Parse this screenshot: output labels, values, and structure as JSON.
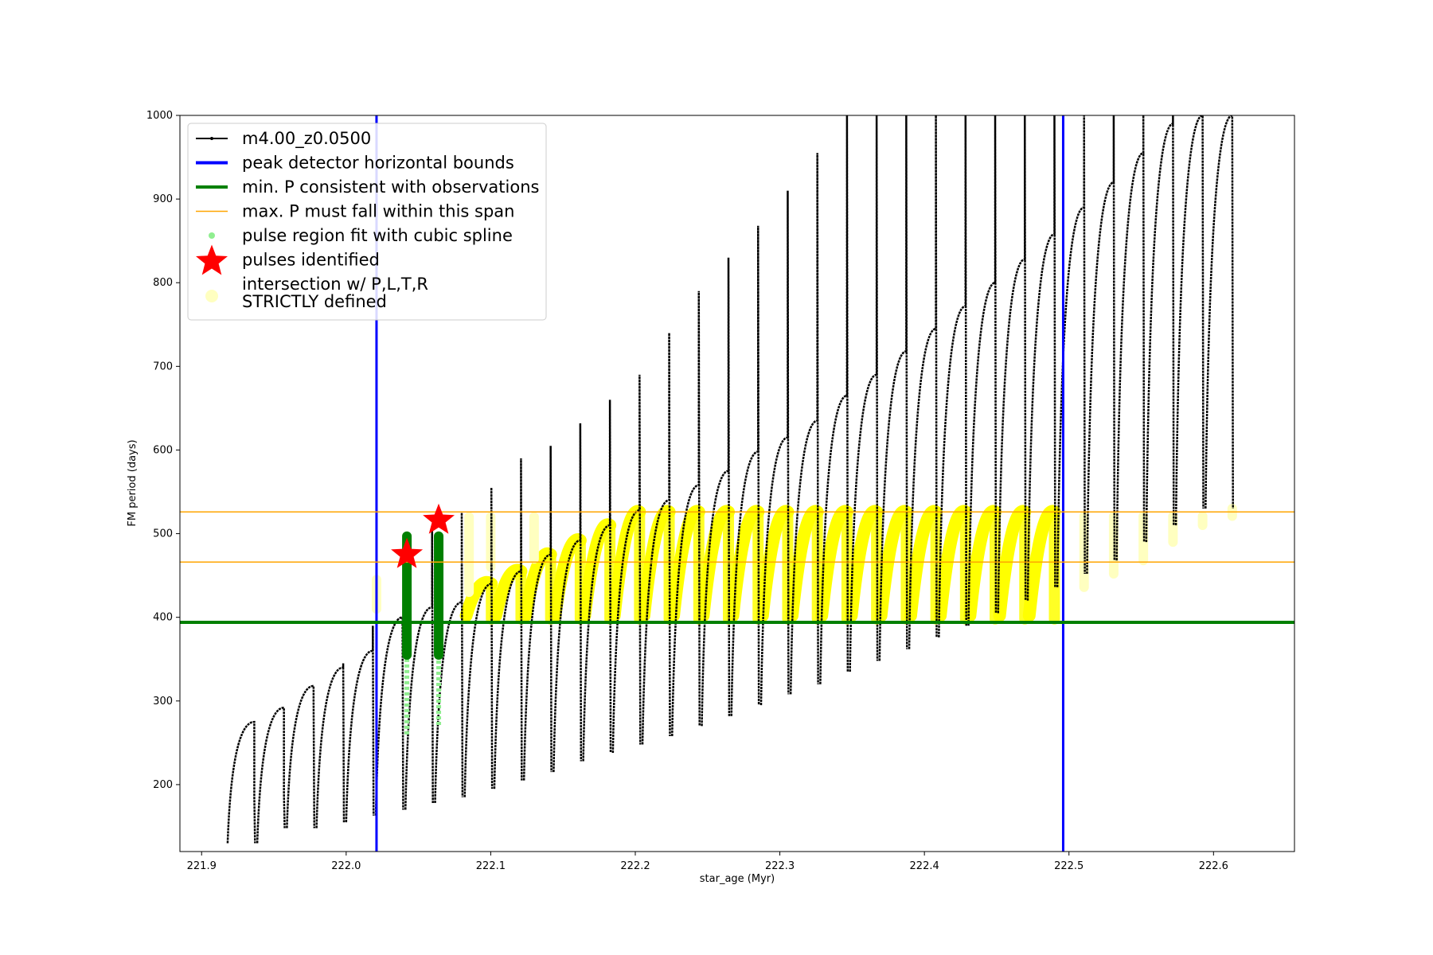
{
  "chart_data": {
    "type": "line",
    "xlabel": "star_age (Myr)",
    "ylabel": "FM period (days)",
    "xlim": [
      221.885,
      222.656
    ],
    "ylim": [
      120,
      1000
    ],
    "xticks": [
      221.9,
      222.0,
      222.1,
      222.2,
      222.3,
      222.4,
      222.5,
      222.6
    ],
    "xtick_labels": [
      "221.9",
      "222.0",
      "222.1",
      "222.2",
      "222.3",
      "222.4",
      "222.5",
      "222.6"
    ],
    "yticks": [
      200,
      300,
      400,
      500,
      600,
      700,
      800,
      900,
      1000
    ],
    "ytick_labels": [
      "200",
      "300",
      "400",
      "500",
      "600",
      "700",
      "800",
      "900",
      "1000"
    ],
    "grid": false,
    "legend_position": "top-left",
    "legend": [
      {
        "label": "m4.00_z0.0500",
        "style": "line-marker",
        "color": "#000000"
      },
      {
        "label": "peak detector horizontal bounds",
        "style": "line",
        "color": "#0000ff"
      },
      {
        "label": "min. P consistent with observations",
        "style": "line",
        "color": "#008000"
      },
      {
        "label": "max. P must fall within this span",
        "style": "thin-line",
        "color": "#ffa500"
      },
      {
        "label": "pulse region fit with cubic spline",
        "style": "dot",
        "color": "#90ee90"
      },
      {
        "label": "pulses identified",
        "style": "star",
        "color": "#ff0000"
      },
      {
        "label": "intersection w/ P,L,T,R",
        "label2": "STRICTLY defined",
        "style": "big-dot",
        "color": "#ffffc0"
      }
    ],
    "vlines": [
      {
        "name": "peak detector horizontal bounds",
        "x": 222.021,
        "color": "#0000ff"
      },
      {
        "name": "peak detector horizontal bounds",
        "x": 222.496,
        "color": "#0000ff"
      }
    ],
    "hlines": [
      {
        "name": "min. P consistent with observations",
        "y": 394,
        "color": "#008000"
      },
      {
        "name": "max. P must fall within this span",
        "y": 526,
        "color": "#ffa500"
      },
      {
        "name": "max. P must fall within this span",
        "y": 466,
        "color": "#ffa500"
      }
    ],
    "pulses": {
      "comment_free": true,
      "start_x": 221.918,
      "spacing": 0.0205,
      "count": 34,
      "troughs": [
        130,
        130,
        148,
        148,
        155,
        163,
        170,
        178,
        185,
        195,
        205,
        215,
        228,
        238,
        248,
        258,
        270,
        282,
        295,
        308,
        320,
        335,
        348,
        362,
        376,
        390,
        405,
        420,
        436,
        452,
        468,
        490,
        510,
        530
      ],
      "smooth_peaks": [
        275,
        292,
        318,
        340,
        360,
        400,
        412,
        418,
        440,
        455,
        475,
        492,
        510,
        528,
        540,
        558,
        575,
        598,
        615,
        635,
        665,
        690,
        718,
        745,
        772,
        800,
        828,
        858,
        890,
        920,
        955,
        990,
        1000,
        1000
      ],
      "spikes": [
        185,
        190,
        300,
        345,
        390,
        400,
        505,
        525,
        555,
        590,
        605,
        632,
        660,
        690,
        740,
        790,
        830,
        868,
        910,
        955,
        1000,
        1000,
        1000,
        1000,
        1000,
        1000,
        1000,
        1000,
        1000,
        1000,
        1000,
        1000,
        1000,
        1000
      ]
    },
    "stars": [
      {
        "x": 222.042,
        "y": 475,
        "color": "#ff0000"
      },
      {
        "x": 222.064,
        "y": 516,
        "color": "#ff0000"
      }
    ],
    "green_fits": [
      {
        "x": 222.042,
        "ymin": 355,
        "ymax": 497,
        "light_min": 258,
        "light_max": 357
      },
      {
        "x": 222.064,
        "ymin": 355,
        "ymax": 497,
        "light_min": 270,
        "light_max": 355
      }
    ],
    "colors": {
      "pulse_line": "#000000",
      "yellow_band": "#ffff00",
      "yellow_faint": "#ffffc0",
      "green_fit": "#008000",
      "light_green": "#90ee90",
      "star": "#ff0000"
    }
  }
}
